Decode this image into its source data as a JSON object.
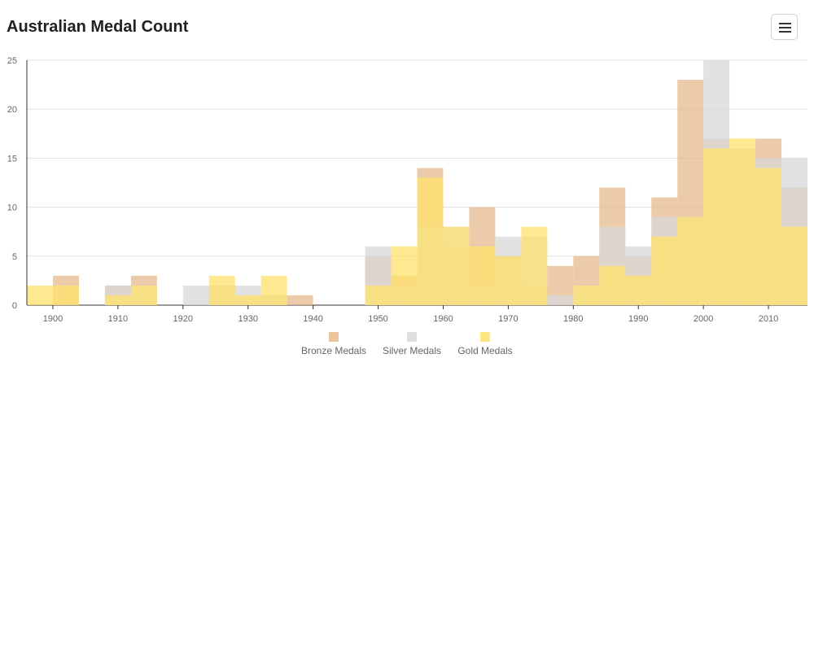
{
  "header": {
    "title": "Australian Medal Count",
    "menu_icon": "hamburger-menu-icon"
  },
  "colors": {
    "bronze": "#e6b98e",
    "silver": "#d8d8d8",
    "gold": "#ffe26b"
  },
  "chart_data": {
    "type": "bar",
    "title": "Australian Medal Count",
    "xlabel": "",
    "ylabel": "",
    "ylim": [
      0,
      25
    ],
    "xlim": [
      1896,
      2016
    ],
    "x_ticks": [
      1900,
      1910,
      1920,
      1930,
      1940,
      1950,
      1960,
      1970,
      1980,
      1990,
      2000,
      2010
    ],
    "y_ticks": [
      0,
      5,
      10,
      15,
      20,
      25
    ],
    "grid": true,
    "legend_position": "bottom",
    "bin_starts": [
      1896,
      1900,
      1904,
      1908,
      1912,
      1916,
      1920,
      1924,
      1928,
      1932,
      1936,
      1940,
      1944,
      1948,
      1952,
      1956,
      1960,
      1964,
      1968,
      1972,
      1976,
      1980,
      1984,
      1988,
      1992,
      1996,
      2000,
      2004,
      2008,
      2012
    ],
    "bin_width": 4,
    "series": [
      {
        "name": "Bronze Medals",
        "values": [
          0,
          3,
          0,
          2,
          3,
          0,
          0,
          2,
          1,
          1,
          1,
          0,
          0,
          5,
          3,
          14,
          6,
          10,
          5,
          2,
          4,
          5,
          12,
          5,
          11,
          23,
          17,
          16,
          17,
          12
        ]
      },
      {
        "name": "Silver Medals",
        "values": [
          0,
          0,
          0,
          2,
          2,
          0,
          2,
          2,
          2,
          1,
          0,
          0,
          0,
          6,
          2,
          8,
          8,
          2,
          7,
          7,
          1,
          2,
          8,
          6,
          9,
          9,
          25,
          16,
          15,
          15
        ]
      },
      {
        "name": "Gold Medals",
        "values": [
          2,
          2,
          0,
          1,
          2,
          0,
          0,
          3,
          1,
          3,
          0,
          0,
          0,
          2,
          6,
          13,
          8,
          6,
          5,
          8,
          0,
          2,
          4,
          3,
          7,
          9,
          16,
          17,
          14,
          8
        ]
      }
    ]
  }
}
